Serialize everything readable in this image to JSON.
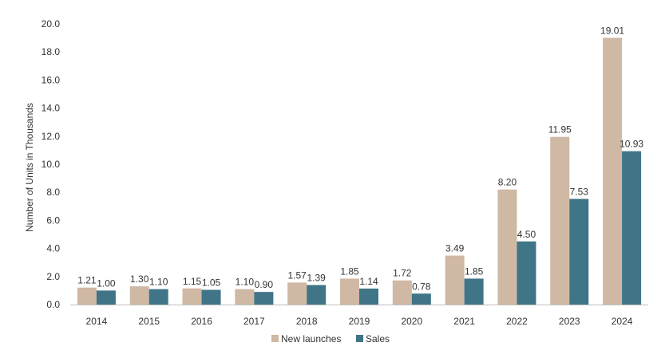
{
  "chart_data": {
    "type": "bar",
    "title": "",
    "xlabel": "",
    "ylabel": "Number of Units in Thousands",
    "ylim": [
      0,
      20
    ],
    "yticks": [
      "0.0",
      "2.0",
      "4.0",
      "6.0",
      "8.0",
      "10.0",
      "12.0",
      "14.0",
      "16.0",
      "18.0",
      "20.0"
    ],
    "grid": false,
    "legend_position": "bottom-center",
    "categories": [
      "2014",
      "2015",
      "2016",
      "2017",
      "2018",
      "2019",
      "2020",
      "2021",
      "2022",
      "2023",
      "2024"
    ],
    "series": [
      {
        "name": "New launches",
        "color": "#cfb8a4",
        "values": [
          1.21,
          1.3,
          1.15,
          1.1,
          1.57,
          1.85,
          1.72,
          3.49,
          8.2,
          11.95,
          19.01
        ],
        "labels": [
          "1.21",
          "1.30",
          "1.15",
          "1.10",
          "1.57",
          "1.85",
          "1.72",
          "3.49",
          "8.20",
          "11.95",
          "19.01"
        ]
      },
      {
        "name": "Sales",
        "color": "#3f7586",
        "values": [
          1.0,
          1.1,
          1.05,
          0.9,
          1.39,
          1.14,
          0.78,
          1.85,
          4.5,
          7.53,
          10.93
        ],
        "labels": [
          "1.00",
          "1.10",
          "1.05",
          "0.90",
          "1.39",
          "1.14",
          "0.78",
          "1.85",
          "4.50",
          "7.53",
          "10.93"
        ]
      }
    ],
    "axis_color": "#bfbfbf"
  }
}
